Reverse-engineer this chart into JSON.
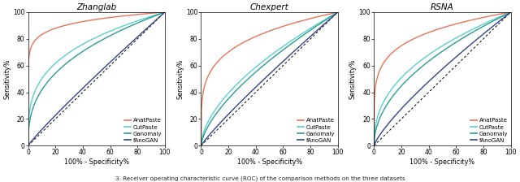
{
  "titles": [
    "Zhanglab",
    "Chexpert",
    "RSNA"
  ],
  "xlabel": "100% - Specificity%",
  "ylabel": "Sensitivity%",
  "colors": {
    "AnatPaste": "#E8735A",
    "CutPaste": "#5BCFCF",
    "Ganomaly": "#2B9D8F",
    "fAnoGAN": "#334488"
  },
  "legend_labels": [
    "AnatPaste",
    "CutPaste",
    "Ganomaly",
    "fAnoGAN"
  ],
  "caption": "3. Receiver operating characteristic curve (ROC) of the comparison methods on the three datasets",
  "background": "#ffffff",
  "figsize": [
    6.4,
    2.24
  ],
  "dpi": 100,
  "zhanglab_alphas": {
    "AnatPaste": 0.08,
    "CutPaste": 0.3,
    "Ganomaly": 0.38,
    "fAnoGAN": 0.92
  },
  "chexpert_alphas": {
    "AnatPaste": 0.22,
    "CutPaste": 0.58,
    "Ganomaly": 0.65,
    "fAnoGAN": 0.9
  },
  "rsna_alphas": {
    "AnatPaste": 0.18,
    "CutPaste": 0.42,
    "Ganomaly": 0.5,
    "fAnoGAN": 0.8
  }
}
